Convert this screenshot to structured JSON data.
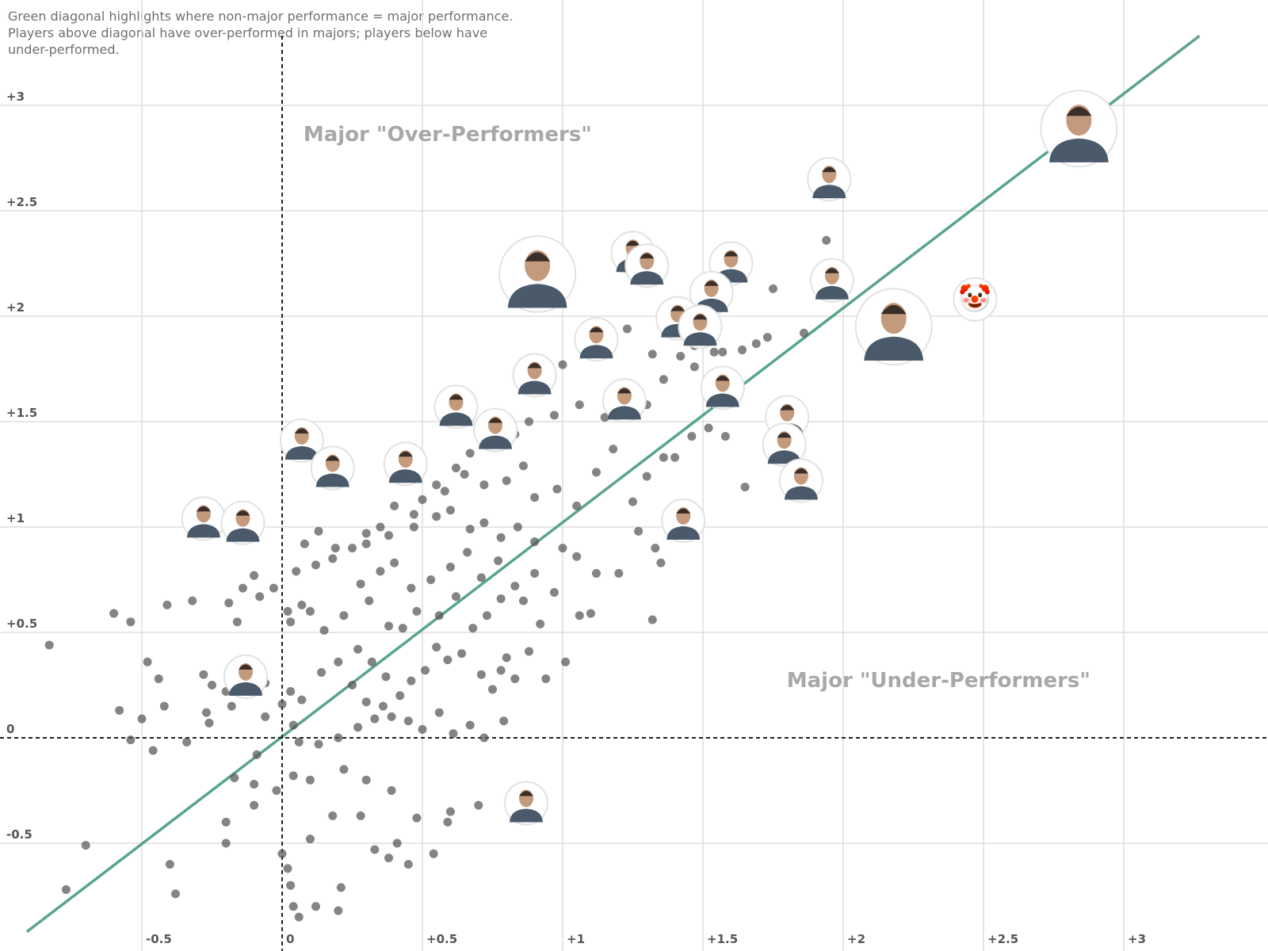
{
  "note": "Green diagonal highlights where non-major performance = major performance. Players above diagonal have over-performed in majors; players below have under-performed.",
  "chart_data": {
    "type": "scatter",
    "title": "",
    "xlabel": "",
    "ylabel": "",
    "xlim": [
      -1.0,
      3.5
    ],
    "ylim": [
      -1.0,
      3.3
    ],
    "grid": true,
    "x_ticks": [
      {
        "value": -0.5,
        "label": "-0.5"
      },
      {
        "value": 0,
        "label": "0"
      },
      {
        "value": 0.5,
        "label": "+0.5"
      },
      {
        "value": 1,
        "label": "+1"
      },
      {
        "value": 1.5,
        "label": "+1.5"
      },
      {
        "value": 2,
        "label": "+2"
      },
      {
        "value": 2.5,
        "label": "+2.5"
      },
      {
        "value": 3,
        "label": "+3"
      }
    ],
    "y_ticks": [
      {
        "value": -0.5,
        "label": "-0.5"
      },
      {
        "value": 0,
        "label": "0"
      },
      {
        "value": 0.5,
        "label": "+0.5"
      },
      {
        "value": 1,
        "label": "+1"
      },
      {
        "value": 1.5,
        "label": "+1.5"
      },
      {
        "value": 2,
        "label": "+2"
      },
      {
        "value": 2.5,
        "label": "+2.5"
      },
      {
        "value": 3,
        "label": "+3"
      }
    ],
    "reference_lines": [
      {
        "type": "diagonal",
        "from": [
          -0.91,
          -0.92
        ],
        "to": [
          3.27,
          3.33
        ],
        "color": "#5aa586"
      },
      {
        "type": "horizontal",
        "value": 0,
        "style": "dashed"
      },
      {
        "type": "vertical",
        "value": 0,
        "style": "dashed"
      }
    ],
    "annotations": [
      {
        "text": "Major \"Over-Performers\"",
        "x": 0.59,
        "y": 2.83
      },
      {
        "text": "Major \"Under-Performers\"",
        "x": 2.34,
        "y": 0.24
      }
    ],
    "point_color": "#555555",
    "players": [
      {
        "x": 2.84,
        "y": 2.89,
        "big": true
      },
      {
        "x": 1.95,
        "y": 2.65
      },
      {
        "x": 2.47,
        "y": 2.08,
        "icon": "clown-face-icon",
        "glyph": "🤡"
      },
      {
        "x": 2.18,
        "y": 1.95,
        "big": true
      },
      {
        "x": 0.91,
        "y": 2.2,
        "big": true
      },
      {
        "x": 1.25,
        "y": 2.3
      },
      {
        "x": 1.3,
        "y": 2.24
      },
      {
        "x": 1.6,
        "y": 2.25
      },
      {
        "x": 1.53,
        "y": 2.11
      },
      {
        "x": 1.96,
        "y": 2.17
      },
      {
        "x": 1.41,
        "y": 1.99
      },
      {
        "x": 1.49,
        "y": 1.95
      },
      {
        "x": 1.12,
        "y": 1.89
      },
      {
        "x": 0.9,
        "y": 1.72
      },
      {
        "x": 1.57,
        "y": 1.66
      },
      {
        "x": 1.22,
        "y": 1.6
      },
      {
        "x": 0.62,
        "y": 1.57
      },
      {
        "x": 0.76,
        "y": 1.46
      },
      {
        "x": 1.8,
        "y": 1.52
      },
      {
        "x": 1.79,
        "y": 1.39
      },
      {
        "x": 0.07,
        "y": 1.41
      },
      {
        "x": 0.18,
        "y": 1.28
      },
      {
        "x": 0.44,
        "y": 1.3
      },
      {
        "x": 1.85,
        "y": 1.22
      },
      {
        "x": -0.28,
        "y": 1.04
      },
      {
        "x": -0.14,
        "y": 1.02
      },
      {
        "x": 1.43,
        "y": 1.03
      },
      {
        "x": -0.13,
        "y": 0.29
      },
      {
        "x": 0.87,
        "y": -0.31
      }
    ],
    "points": [
      [
        -0.83,
        0.44
      ],
      [
        -0.6,
        0.59
      ],
      [
        -0.54,
        0.55
      ],
      [
        -0.41,
        0.63
      ],
      [
        -0.32,
        0.65
      ],
      [
        -0.19,
        0.64
      ],
      [
        -0.14,
        0.71
      ],
      [
        -0.08,
        0.67
      ],
      [
        0.02,
        0.6
      ],
      [
        0.07,
        0.63
      ],
      [
        0.1,
        0.6
      ],
      [
        0.03,
        0.55
      ],
      [
        -0.16,
        0.55
      ],
      [
        -0.48,
        0.36
      ],
      [
        -0.44,
        0.28
      ],
      [
        -0.28,
        0.3
      ],
      [
        -0.25,
        0.25
      ],
      [
        -0.2,
        0.22
      ],
      [
        -0.18,
        0.15
      ],
      [
        -0.06,
        0.26
      ],
      [
        -0.58,
        0.13
      ],
      [
        -0.5,
        0.09
      ],
      [
        -0.42,
        0.15
      ],
      [
        -0.27,
        0.12
      ],
      [
        -0.26,
        0.07
      ],
      [
        -0.06,
        0.1
      ],
      [
        0.0,
        0.16
      ],
      [
        0.03,
        0.22
      ],
      [
        0.07,
        0.18
      ],
      [
        0.04,
        0.06
      ],
      [
        -0.34,
        -0.02
      ],
      [
        -0.46,
        -0.06
      ],
      [
        -0.54,
        -0.01
      ],
      [
        -0.17,
        -0.19
      ],
      [
        -0.1,
        -0.22
      ],
      [
        -0.02,
        -0.25
      ],
      [
        0.04,
        -0.18
      ],
      [
        0.1,
        -0.2
      ],
      [
        -0.09,
        -0.08
      ],
      [
        0.06,
        -0.02
      ],
      [
        -0.7,
        -0.51
      ],
      [
        -0.77,
        -0.72
      ],
      [
        -0.4,
        -0.6
      ],
      [
        -0.38,
        -0.74
      ],
      [
        -0.2,
        -0.4
      ],
      [
        -0.2,
        -0.5
      ],
      [
        -0.1,
        -0.32
      ],
      [
        0.0,
        -0.55
      ],
      [
        0.03,
        -0.7
      ],
      [
        0.02,
        -0.62
      ],
      [
        0.04,
        -0.8
      ],
      [
        0.06,
        -0.85
      ],
      [
        0.12,
        -0.8
      ],
      [
        0.21,
        -0.71
      ],
      [
        0.2,
        -0.82
      ],
      [
        0.1,
        -0.48
      ],
      [
        0.18,
        -0.37
      ],
      [
        0.28,
        -0.37
      ],
      [
        0.33,
        -0.53
      ],
      [
        0.38,
        -0.57
      ],
      [
        0.41,
        -0.5
      ],
      [
        0.45,
        -0.6
      ],
      [
        0.54,
        -0.55
      ],
      [
        0.59,
        -0.4
      ],
      [
        0.7,
        -0.32
      ],
      [
        0.6,
        -0.35
      ],
      [
        0.48,
        -0.38
      ],
      [
        0.39,
        -0.25
      ],
      [
        0.3,
        -0.2
      ],
      [
        0.22,
        -0.15
      ],
      [
        0.13,
        -0.03
      ],
      [
        0.2,
        0.0
      ],
      [
        0.27,
        0.05
      ],
      [
        0.33,
        0.09
      ],
      [
        0.36,
        0.15
      ],
      [
        0.42,
        0.2
      ],
      [
        0.46,
        0.27
      ],
      [
        0.51,
        0.32
      ],
      [
        0.55,
        0.43
      ],
      [
        0.59,
        0.37
      ],
      [
        0.64,
        0.4
      ],
      [
        0.71,
        0.3
      ],
      [
        0.75,
        0.23
      ],
      [
        0.78,
        0.32
      ],
      [
        0.8,
        0.38
      ],
      [
        0.83,
        0.28
      ],
      [
        0.88,
        0.41
      ],
      [
        0.94,
        0.28
      ],
      [
        0.14,
        0.31
      ],
      [
        0.2,
        0.36
      ],
      [
        0.27,
        0.42
      ],
      [
        0.32,
        0.36
      ],
      [
        0.37,
        0.29
      ],
      [
        0.25,
        0.25
      ],
      [
        0.3,
        0.17
      ],
      [
        0.39,
        0.1
      ],
      [
        0.45,
        0.08
      ],
      [
        0.5,
        0.04
      ],
      [
        0.56,
        0.12
      ],
      [
        0.61,
        0.02
      ],
      [
        0.67,
        0.06
      ],
      [
        0.72,
        0.0
      ],
      [
        0.79,
        0.08
      ],
      [
        0.15,
        0.51
      ],
      [
        0.22,
        0.58
      ],
      [
        0.31,
        0.65
      ],
      [
        0.38,
        0.53
      ],
      [
        0.43,
        0.52
      ],
      [
        0.48,
        0.6
      ],
      [
        0.56,
        0.58
      ],
      [
        0.62,
        0.67
      ],
      [
        0.68,
        0.52
      ],
      [
        0.73,
        0.58
      ],
      [
        0.78,
        0.66
      ],
      [
        0.86,
        0.65
      ],
      [
        0.92,
        0.54
      ],
      [
        0.28,
        0.73
      ],
      [
        0.35,
        0.79
      ],
      [
        0.4,
        0.83
      ],
      [
        0.46,
        0.71
      ],
      [
        0.53,
        0.75
      ],
      [
        0.6,
        0.81
      ],
      [
        0.66,
        0.88
      ],
      [
        0.71,
        0.76
      ],
      [
        0.77,
        0.84
      ],
      [
        0.83,
        0.72
      ],
      [
        0.9,
        0.78
      ],
      [
        0.97,
        0.69
      ],
      [
        0.19,
        0.9
      ],
      [
        0.3,
        0.92
      ],
      [
        0.38,
        0.96
      ],
      [
        0.47,
        1.0
      ],
      [
        0.55,
        1.05
      ],
      [
        0.6,
        1.08
      ],
      [
        0.67,
        0.99
      ],
      [
        0.72,
        1.02
      ],
      [
        0.78,
        0.95
      ],
      [
        0.84,
        1.0
      ],
      [
        0.9,
        0.93
      ],
      [
        1.0,
        0.9
      ],
      [
        1.05,
        0.86
      ],
      [
        1.12,
        0.78
      ],
      [
        1.2,
        0.78
      ],
      [
        1.27,
        0.98
      ],
      [
        1.33,
        0.9
      ],
      [
        1.35,
        0.83
      ],
      [
        1.32,
        0.56
      ],
      [
        1.06,
        0.58
      ],
      [
        1.01,
        0.36
      ],
      [
        1.1,
        0.59
      ],
      [
        0.58,
        1.17
      ],
      [
        0.65,
        1.25
      ],
      [
        0.72,
        1.2
      ],
      [
        0.8,
        1.22
      ],
      [
        0.86,
        1.29
      ],
      [
        0.9,
        1.14
      ],
      [
        0.98,
        1.18
      ],
      [
        1.05,
        1.1
      ],
      [
        1.12,
        1.26
      ],
      [
        1.18,
        1.37
      ],
      [
        1.25,
        1.12
      ],
      [
        1.3,
        1.24
      ],
      [
        1.36,
        1.33
      ],
      [
        1.4,
        1.33
      ],
      [
        1.46,
        1.43
      ],
      [
        1.52,
        1.47
      ],
      [
        1.58,
        1.43
      ],
      [
        1.65,
        1.19
      ],
      [
        0.8,
        1.46
      ],
      [
        0.88,
        1.5
      ],
      [
        0.97,
        1.53
      ],
      [
        1.06,
        1.58
      ],
      [
        1.15,
        1.52
      ],
      [
        1.21,
        1.66
      ],
      [
        1.3,
        1.58
      ],
      [
        1.36,
        1.7
      ],
      [
        1.42,
        1.81
      ],
      [
        1.47,
        1.76
      ],
      [
        1.57,
        1.83
      ],
      [
        1.64,
        1.84
      ],
      [
        1.69,
        1.87
      ],
      [
        1.73,
        1.9
      ],
      [
        1.86,
        1.92
      ],
      [
        1.75,
        2.13
      ],
      [
        1.57,
        2.25
      ],
      [
        1.94,
        2.36
      ],
      [
        1.54,
        1.83
      ],
      [
        1.47,
        1.86
      ],
      [
        1.32,
        1.82
      ],
      [
        1.23,
        1.94
      ],
      [
        1.0,
        1.77
      ],
      [
        0.95,
        1.68
      ],
      [
        0.83,
        1.44
      ],
      [
        0.74,
        1.38
      ],
      [
        0.67,
        1.35
      ],
      [
        0.62,
        1.28
      ],
      [
        0.55,
        1.2
      ],
      [
        0.5,
        1.13
      ],
      [
        0.47,
        1.06
      ],
      [
        0.4,
        1.1
      ],
      [
        0.35,
        1.0
      ],
      [
        0.3,
        0.97
      ],
      [
        0.25,
        0.9
      ],
      [
        0.18,
        0.85
      ],
      [
        0.12,
        0.82
      ],
      [
        0.05,
        0.79
      ],
      [
        -0.03,
        0.71
      ],
      [
        -0.1,
        0.77
      ],
      [
        0.08,
        0.92
      ],
      [
        0.13,
        0.98
      ]
    ]
  }
}
